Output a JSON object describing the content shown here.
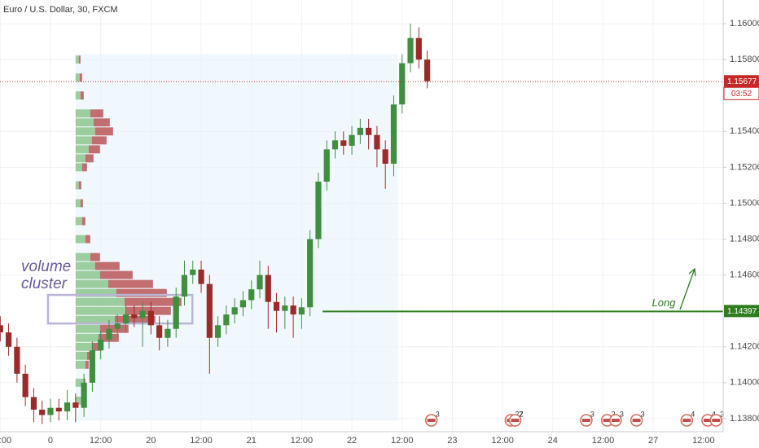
{
  "chart_data": {
    "type": "candlestick",
    "title": "Euro / U.S. Dollar, 30, FXCM",
    "x": [
      -12,
      -10,
      -8,
      -6,
      -4,
      -2,
      0,
      2,
      4,
      6,
      8,
      10,
      12,
      14,
      16,
      18,
      20,
      22,
      24,
      26,
      28,
      30,
      32,
      34,
      36,
      38,
      40,
      42,
      44,
      46,
      48,
      50,
      52,
      54,
      56,
      58,
      60,
      62,
      64,
      66,
      68,
      70,
      72,
      74,
      76,
      78,
      80,
      82,
      84,
      86,
      88,
      90
    ],
    "open": [
      1.1432,
      1.1428,
      1.142,
      1.1405,
      1.1392,
      1.1385,
      1.1382,
      1.1386,
      1.1384,
      1.1389,
      1.1386,
      1.14,
      1.1418,
      1.1424,
      1.143,
      1.1433,
      1.1438,
      1.1436,
      1.144,
      1.1432,
      1.1425,
      1.143,
      1.1448,
      1.146,
      1.1463,
      1.1455,
      1.1425,
      1.1432,
      1.1438,
      1.1442,
      1.1446,
      1.1452,
      1.146,
      1.1445,
      1.144,
      1.1443,
      1.1438,
      1.1442,
      1.148,
      1.1512,
      1.153,
      1.1535,
      1.1532,
      1.1538,
      1.1542,
      1.1538,
      1.153,
      1.1522,
      1.1555,
      1.1578,
      1.1592,
      1.158
    ],
    "high": [
      1.1437,
      1.1433,
      1.1425,
      1.141,
      1.1397,
      1.139,
      1.1391,
      1.1391,
      1.1396,
      1.1394,
      1.1405,
      1.1423,
      1.1429,
      1.1435,
      1.1438,
      1.1443,
      1.1443,
      1.1445,
      1.1445,
      1.1437,
      1.1435,
      1.1453,
      1.1468,
      1.1468,
      1.1468,
      1.146,
      1.1437,
      1.1443,
      1.1447,
      1.1451,
      1.1457,
      1.1468,
      1.1465,
      1.145,
      1.1448,
      1.1448,
      1.1447,
      1.1485,
      1.1517,
      1.1535,
      1.154,
      1.154,
      1.1543,
      1.1547,
      1.1547,
      1.1543,
      1.1535,
      1.156,
      1.1583,
      1.16,
      1.1598,
      1.1585
    ],
    "low": [
      1.1423,
      1.1415,
      1.14,
      1.1387,
      1.1378,
      1.1377,
      1.1378,
      1.1379,
      1.1379,
      1.1378,
      1.1381,
      1.1395,
      1.1413,
      1.1419,
      1.1425,
      1.1428,
      1.1431,
      1.142,
      1.1427,
      1.1418,
      1.142,
      1.1425,
      1.1443,
      1.1455,
      1.145,
      1.1405,
      1.142,
      1.1427,
      1.1433,
      1.1437,
      1.1441,
      1.1447,
      1.143,
      1.1428,
      1.143,
      1.1425,
      1.143,
      1.1437,
      1.1475,
      1.1507,
      1.1525,
      1.1527,
      1.1527,
      1.1533,
      1.153,
      1.152,
      1.1508,
      1.1515,
      1.155,
      1.1573,
      1.1575,
      1.1564
    ],
    "close": [
      1.1428,
      1.142,
      1.1405,
      1.1392,
      1.1385,
      1.1382,
      1.1386,
      1.1384,
      1.1389,
      1.1386,
      1.14,
      1.1418,
      1.1424,
      1.143,
      1.1433,
      1.1438,
      1.1436,
      1.144,
      1.1432,
      1.1425,
      1.143,
      1.1448,
      1.146,
      1.1463,
      1.1455,
      1.1425,
      1.1432,
      1.1438,
      1.1442,
      1.1446,
      1.1452,
      1.146,
      1.1445,
      1.144,
      1.1443,
      1.1438,
      1.1442,
      1.148,
      1.1512,
      1.153,
      1.1535,
      1.1532,
      1.1538,
      1.1542,
      1.1538,
      1.153,
      1.1522,
      1.1555,
      1.1578,
      1.1592,
      1.158,
      1.1568
    ],
    "up_color": "#3f8f3f",
    "down_color": "#9b2a2a",
    "xlim": [
      -12.06,
      160.7
    ],
    "xticks": [
      {
        "value": -12,
        "label": "12:00"
      },
      0,
      {
        "value": 12,
        "label": "12:00"
      },
      {
        "value": 24,
        "label": "20"
      },
      {
        "value": 36,
        "label": "12:00"
      },
      {
        "value": 48,
        "label": "21"
      },
      {
        "value": 60,
        "label": "12:00"
      },
      {
        "value": 72,
        "label": "22"
      },
      {
        "value": 84,
        "label": "12:00"
      },
      {
        "value": 96,
        "label": "23"
      },
      {
        "value": 108,
        "label": "12:00"
      },
      {
        "value": 120,
        "label": "24"
      },
      {
        "value": 132,
        "label": "12:00"
      },
      {
        "value": 144,
        "label": "27"
      },
      {
        "value": 156,
        "label": "12:00"
      }
    ],
    "ylim": [
      1.13727,
      1.16132
    ],
    "yticks": [
      {
        "value": 1.16,
        "label": "1.16000"
      },
      {
        "value": 1.158,
        "label": "1.15800"
      },
      {
        "value": 1.154,
        "label": "1.15400"
      },
      {
        "value": 1.152,
        "label": "1.15200"
      },
      {
        "value": 1.15,
        "label": "1.15000"
      },
      {
        "value": 1.148,
        "label": "1.14800"
      },
      {
        "value": 1.146,
        "label": "1.14600"
      },
      {
        "value": 1.142,
        "label": "1.14200"
      },
      {
        "value": 1.14,
        "label": "1.14000"
      },
      {
        "value": 1.138,
        "label": "1.13800"
      }
    ],
    "grid": true,
    "last_price": 1.15677,
    "countdown": "03:52",
    "long_line": {
      "label": "Long",
      "price": 1.14397,
      "start": 65,
      "color": "#2e7d1e"
    },
    "range_box": {
      "x": [
        6,
        83
      ],
      "y": [
        1.13787,
        1.1583
      ],
      "color": "#e8f4fb"
    },
    "cluster_box": {
      "x": [
        -0.6,
        33.9
      ],
      "y": [
        1.1433,
        1.14489
      ],
      "color": "#b9b5d6"
    },
    "annotation": [
      "volume",
      "cluster"
    ],
    "volume_profile": {
      "levels": [
        1.158,
        1.157,
        1.156,
        1.155,
        1.1545,
        1.154,
        1.1535,
        1.153,
        1.1525,
        1.152,
        1.151,
        1.15,
        1.149,
        1.148,
        1.147,
        1.1465,
        1.146,
        1.1455,
        1.145,
        1.1445,
        1.144,
        1.1435,
        1.143,
        1.1425,
        1.142,
        1.1415,
        1.141,
        1.14,
        1.139
      ],
      "up": [
        4,
        5,
        6,
        18,
        22,
        24,
        20,
        16,
        12,
        8,
        4,
        6,
        8,
        12,
        18,
        24,
        30,
        40,
        50,
        60,
        62,
        48,
        30,
        28,
        20,
        14,
        12,
        10,
        8
      ],
      "down": [
        2,
        3,
        4,
        16,
        20,
        22,
        18,
        14,
        10,
        6,
        3,
        3,
        4,
        6,
        12,
        30,
        40,
        55,
        62,
        70,
        55,
        50,
        35,
        25,
        12,
        6,
        4,
        2,
        1
      ],
      "up_color": "#7fbf7f",
      "down_color": "#b24040"
    },
    "events": [
      {
        "x": 91,
        "label": "3"
      },
      {
        "x": 110,
        "label": "27"
      },
      {
        "x": 111,
        "label": "2"
      },
      {
        "x": 128,
        "label": "3"
      },
      {
        "x": 133,
        "label": "2"
      },
      {
        "x": 135,
        "label": "3"
      },
      {
        "x": 140,
        "label": "3"
      },
      {
        "x": 152,
        "label": "4"
      },
      {
        "x": 157,
        "label": "4"
      },
      {
        "x": 159,
        "label": "3"
      }
    ]
  }
}
